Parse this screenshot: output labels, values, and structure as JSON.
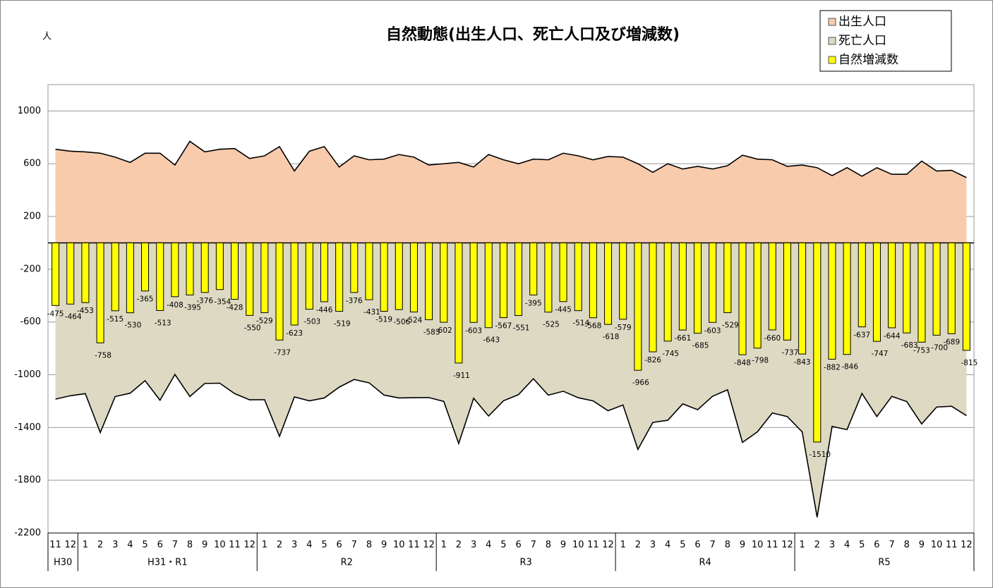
{
  "chart_data": {
    "type": "combo",
    "title": "自然動態(出生人口、死亡人口及び増減数)",
    "unit": "人",
    "groups": [
      {
        "name": "H30",
        "months": [
          "11",
          "12"
        ]
      },
      {
        "name": "H31・R1",
        "months": [
          "1",
          "2",
          "3",
          "4",
          "5",
          "6",
          "7",
          "8",
          "9",
          "10",
          "11",
          "12"
        ]
      },
      {
        "name": "R2",
        "months": [
          "1",
          "2",
          "3",
          "4",
          "5",
          "6",
          "7",
          "8",
          "9",
          "10",
          "11",
          "12"
        ]
      },
      {
        "name": "R3",
        "months": [
          "1",
          "2",
          "3",
          "4",
          "5",
          "6",
          "7",
          "8",
          "9",
          "10",
          "11",
          "12"
        ]
      },
      {
        "name": "R4",
        "months": [
          "1",
          "2",
          "3",
          "4",
          "5",
          "6",
          "7",
          "8",
          "9",
          "10",
          "11",
          "12"
        ]
      },
      {
        "name": "R5",
        "months": [
          "1",
          "2",
          "3",
          "4",
          "5",
          "6",
          "7",
          "8",
          "9",
          "10",
          "11",
          "12"
        ]
      }
    ],
    "series": [
      {
        "name": "出生人口",
        "type": "area",
        "color": "#f8cbad",
        "values": [
          710,
          695,
          690,
          680,
          650,
          610,
          680,
          680,
          590,
          770,
          690,
          710,
          715,
          640,
          660,
          730,
          545,
          695,
          730,
          575,
          660,
          630,
          635,
          670,
          650,
          590,
          600,
          610,
          575,
          670,
          630,
          600,
          635,
          630,
          680,
          660,
          630,
          655,
          650,
          600,
          535,
          600,
          560,
          580,
          560,
          585,
          665,
          635,
          630,
          580,
          590,
          570,
          510,
          570,
          505,
          570,
          520,
          520,
          620,
          545,
          550,
          495
        ]
      },
      {
        "name": "死亡人口",
        "type": "area",
        "color": "#ddd9c3",
        "values": [
          -1185,
          -1159,
          -1143,
          -1438,
          -1165,
          -1140,
          -1045,
          -1193,
          -998,
          -1165,
          -1066,
          -1064,
          -1143,
          -1190,
          -1189,
          -1467,
          -1168,
          -1198,
          -1176,
          -1094,
          -1036,
          -1061,
          -1154,
          -1176,
          -1174,
          -1173,
          -1202,
          -1521,
          -1178,
          -1313,
          -1197,
          -1151,
          -1030,
          -1155,
          -1125,
          -1174,
          -1198,
          -1273,
          -1229,
          -1566,
          -1361,
          -1345,
          -1221,
          -1265,
          -1163,
          -1114,
          -1513,
          -1433,
          -1290,
          -1317,
          -1433,
          -2080,
          -1392,
          -1416,
          -1142,
          -1317,
          -1164,
          -1203,
          -1373,
          -1245,
          -1239,
          -1310
        ]
      },
      {
        "name": "自然増減数",
        "type": "bar",
        "color": "#ffff00",
        "values": [
          -475,
          -464,
          -453,
          -758,
          -515,
          -530,
          -365,
          -513,
          -408,
          -395,
          -376,
          -354,
          -428,
          -550,
          -529,
          -737,
          -623,
          -503,
          -446,
          -519,
          -376,
          -431,
          -519,
          -506,
          -524,
          -583,
          -602,
          -911,
          -603,
          -643,
          -567,
          -551,
          -395,
          -525,
          -445,
          -514,
          -568,
          -618,
          -579,
          -966,
          -826,
          -745,
          -661,
          -685,
          -603,
          -529,
          -848,
          -798,
          -660,
          -737,
          -843,
          -1510,
          -882,
          -846,
          -637,
          -747,
          -644,
          -683,
          -753,
          -700,
          -689,
          -815
        ]
      }
    ],
    "ylim": [
      -2200,
      1200
    ],
    "yticks": [
      1000,
      600,
      200,
      -200,
      -600,
      -1000,
      -1400,
      -1800,
      -2200
    ],
    "grid": true
  }
}
